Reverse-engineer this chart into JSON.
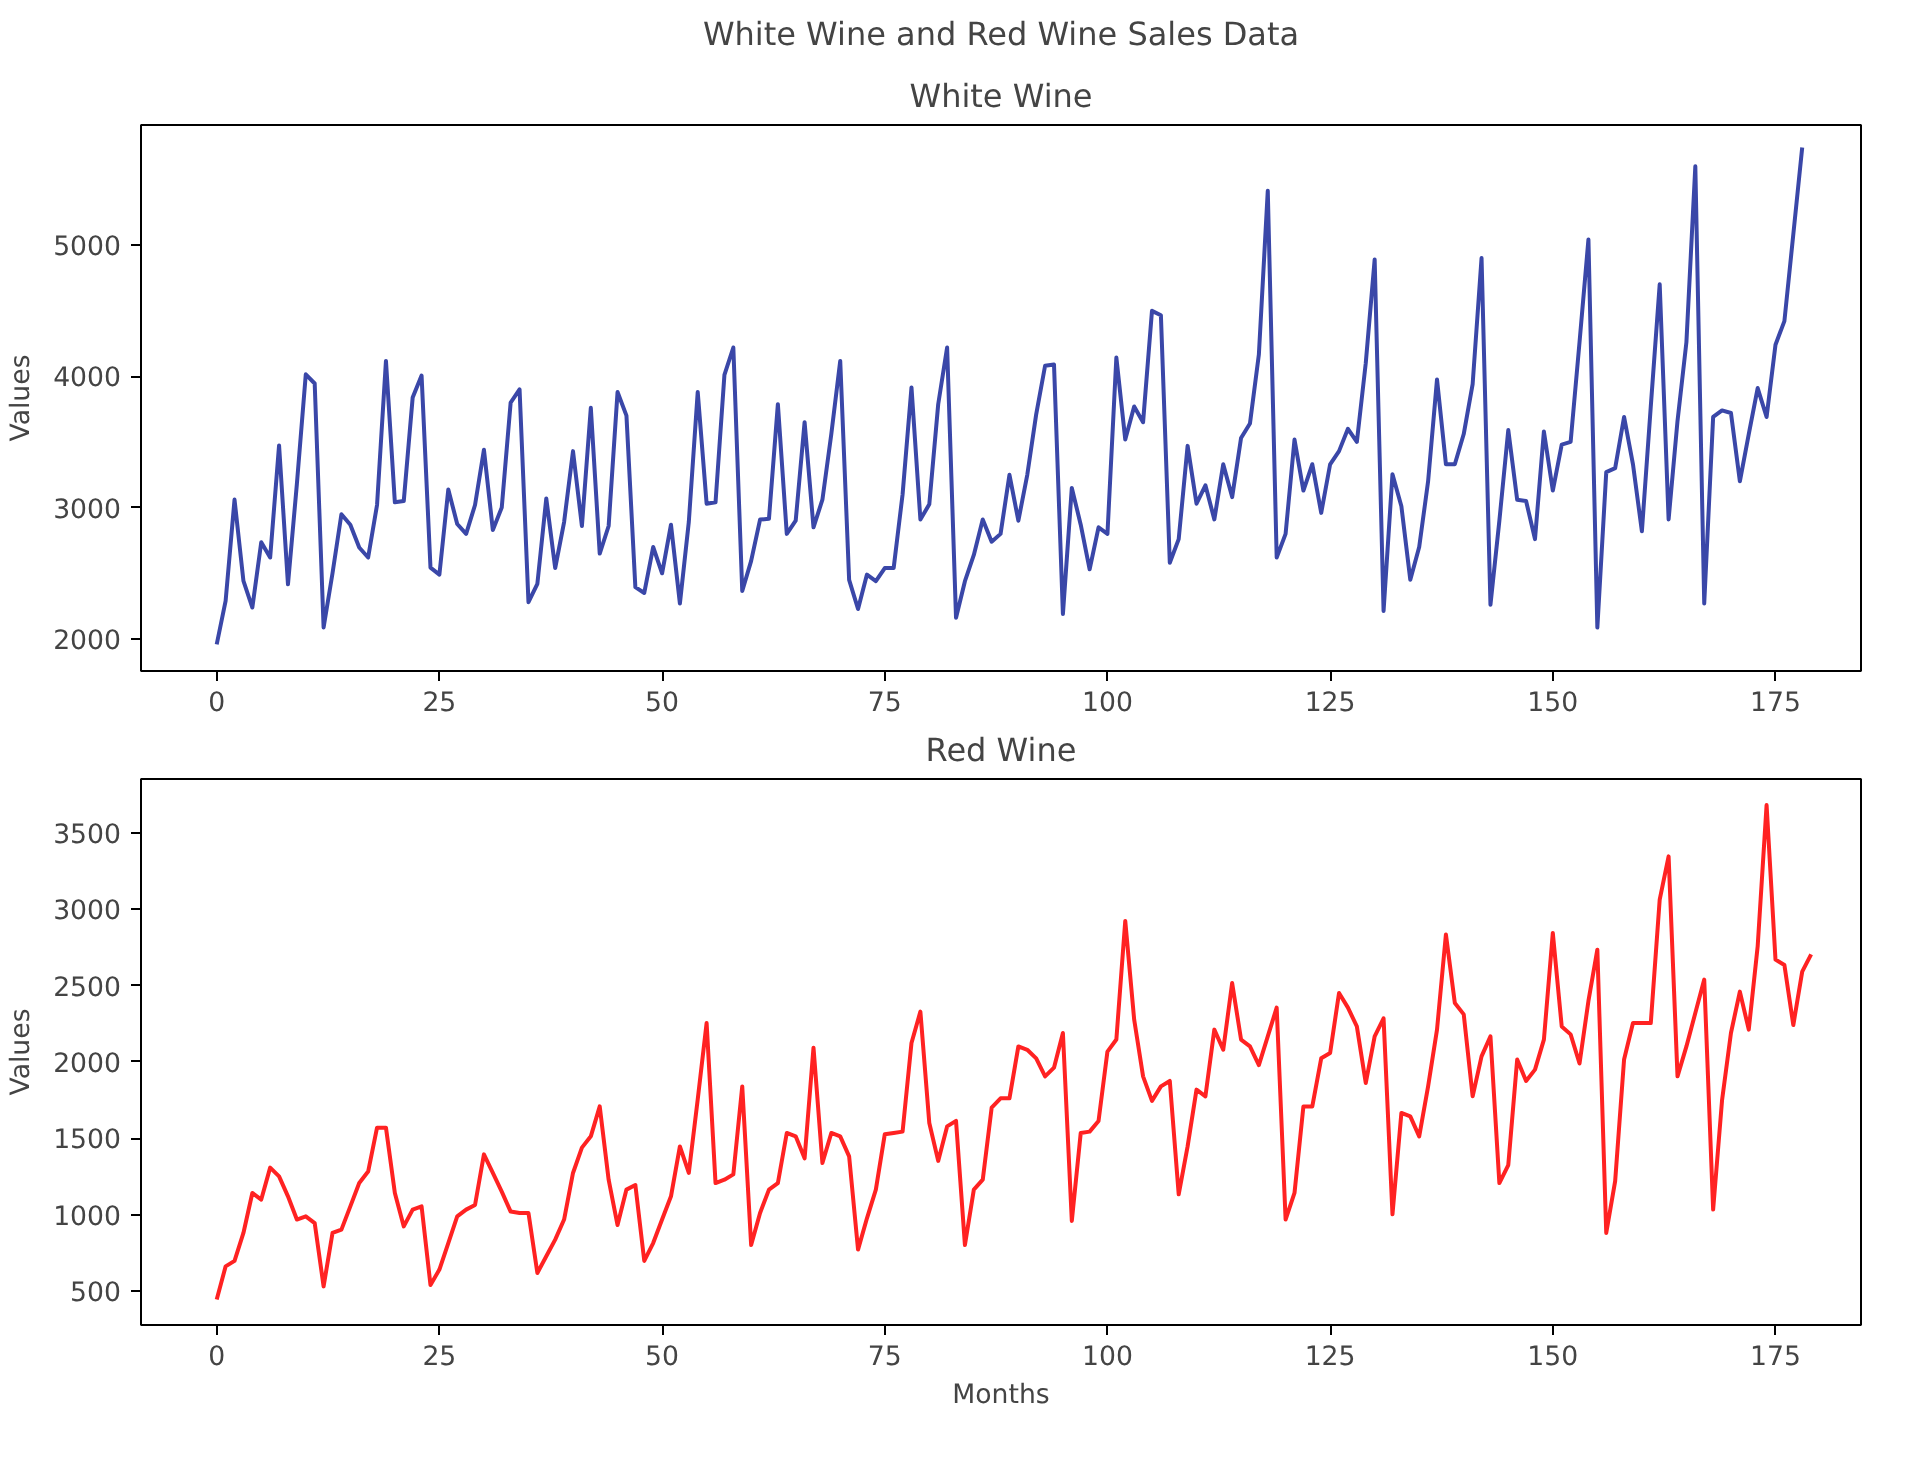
{
  "chart_data": [
    {
      "type": "line",
      "title": "White Wine and Red Wine Sales Data",
      "subtitle": "White Wine",
      "ylabel": "Values",
      "x": [
        0,
        1,
        2,
        3,
        4,
        5,
        6,
        7,
        8,
        9,
        10,
        11,
        12,
        13,
        14,
        15,
        16,
        17,
        18,
        19,
        20,
        21,
        22,
        23,
        24,
        25,
        26,
        27,
        28,
        29,
        30,
        31,
        32,
        33,
        34,
        35,
        36,
        37,
        38,
        39,
        40,
        41,
        42,
        43,
        44,
        45,
        46,
        47,
        48,
        49,
        50,
        51,
        52,
        53,
        54,
        55,
        56,
        57,
        58,
        59,
        60,
        61,
        62,
        63,
        64,
        65,
        66,
        67,
        68,
        69,
        70,
        71,
        72,
        73,
        74,
        75,
        76,
        77,
        78,
        79,
        80,
        81,
        82,
        83,
        84,
        85,
        86,
        87,
        88,
        89,
        90,
        91,
        92,
        93,
        94,
        95,
        96,
        97,
        98,
        99,
        100,
        101,
        102,
        103,
        104,
        105,
        106,
        107,
        108,
        109,
        110,
        111,
        112,
        113,
        114,
        115,
        116,
        117,
        118,
        119,
        120,
        121,
        122,
        123,
        124,
        125,
        126,
        127,
        128,
        129,
        130,
        131,
        132,
        133,
        134,
        135,
        136,
        137,
        138,
        139,
        140,
        141,
        142,
        143,
        144,
        145,
        146,
        147,
        148,
        149,
        150,
        151,
        152,
        153,
        154,
        155,
        156,
        157,
        158,
        159,
        160,
        161,
        162,
        163,
        164,
        165,
        166,
        167,
        168,
        169,
        170,
        171,
        172,
        173,
        174,
        175,
        176,
        177,
        178
      ],
      "series": [
        {
          "color": "#3a47a8",
          "values": [
            1959,
            2290,
            3061,
            2442,
            2239,
            2736,
            2620,
            3473,
            2416,
            3180,
            4015,
            3945,
            2087,
            2500,
            2949,
            2870,
            2696,
            2620,
            3020,
            4117,
            3040,
            3050,
            3838,
            4005,
            2543,
            2490,
            3138,
            2875,
            2800,
            3020,
            3440,
            2830,
            3000,
            3800,
            3900,
            2280,
            2420,
            3070,
            2540,
            2890,
            3430,
            2860,
            3760,
            2650,
            2860,
            3880,
            3700,
            2395,
            2350,
            2700,
            2500,
            2870,
            2270,
            2890,
            3880,
            3030,
            3040,
            4010,
            4219,
            2365,
            2594,
            2909,
            2915,
            3787,
            2800,
            2900,
            3650,
            2850,
            3060,
            3560,
            4117,
            2450,
            2228,
            2490,
            2440,
            2540,
            2540,
            3100,
            3915,
            2910,
            3025,
            3787,
            4219,
            2162,
            2440,
            2640,
            2910,
            2740,
            2800,
            3250,
            2900,
            3250,
            3710,
            4080,
            4090,
            2190,
            3150,
            2870,
            2530,
            2850,
            2800,
            4143,
            3518,
            3770,
            3650,
            4498,
            4465,
            2580,
            2760,
            3470,
            3030,
            3170,
            2910,
            3330,
            3080,
            3530,
            3640,
            4165,
            5412,
            2620,
            2800,
            3518,
            3130,
            3330,
            2960,
            3330,
            3430,
            3600,
            3500,
            4100,
            4889,
            2213,
            3254,
            3010,
            2450,
            2700,
            3200,
            3975,
            3330,
            3330,
            3560,
            3940,
            4900,
            2260,
            2900,
            3590,
            3060,
            3050,
            2760,
            3580,
            3130,
            3480,
            3500,
            4260,
            5041,
            2087,
            3270,
            3300,
            3690,
            3330,
            2820,
            3770,
            4700,
            2910,
            3660,
            4260,
            5599,
            2270,
            3690,
            3740,
            3720,
            3200,
            3560,
            3910,
            3690,
            4240,
            4420,
            5080,
            5742
          ]
        }
      ],
      "xlim": [
        -8.5,
        184.6
      ],
      "ylim": [
        1756,
        5913
      ],
      "xticks": [
        0,
        25,
        50,
        75,
        100,
        125,
        150,
        175
      ],
      "yticks": [
        2000,
        3000,
        4000,
        5000
      ],
      "grid": false
    },
    {
      "type": "line",
      "title": "Red Wine",
      "xlabel": "Months",
      "ylabel": "Values",
      "x": [
        0,
        1,
        2,
        3,
        4,
        5,
        6,
        7,
        8,
        9,
        10,
        11,
        12,
        13,
        14,
        15,
        16,
        17,
        18,
        19,
        20,
        21,
        22,
        23,
        24,
        25,
        26,
        27,
        28,
        29,
        30,
        31,
        32,
        33,
        34,
        35,
        36,
        37,
        38,
        39,
        40,
        41,
        42,
        43,
        44,
        45,
        46,
        47,
        48,
        49,
        50,
        51,
        52,
        53,
        54,
        55,
        56,
        57,
        58,
        59,
        60,
        61,
        62,
        63,
        64,
        65,
        66,
        67,
        68,
        69,
        70,
        71,
        72,
        73,
        74,
        75,
        76,
        77,
        78,
        79,
        80,
        81,
        82,
        83,
        84,
        85,
        86,
        87,
        88,
        89,
        90,
        91,
        92,
        93,
        94,
        95,
        96,
        97,
        98,
        99,
        100,
        101,
        102,
        103,
        104,
        105,
        106,
        107,
        108,
        109,
        110,
        111,
        112,
        113,
        114,
        115,
        116,
        117,
        118,
        119,
        120,
        121,
        122,
        123,
        124,
        125,
        126,
        127,
        128,
        129,
        130,
        131,
        132,
        133,
        134,
        135,
        136,
        137,
        138,
        139,
        140,
        141,
        142,
        143,
        144,
        145,
        146,
        147,
        148,
        149,
        150,
        151,
        152,
        153,
        154,
        155,
        156,
        157,
        158,
        159,
        160,
        161,
        162,
        163,
        164,
        165,
        166,
        167,
        168,
        169,
        170,
        171,
        172,
        173,
        174,
        175,
        176,
        177,
        178,
        179
      ],
      "series": [
        {
          "color": "#ff2222",
          "values": [
            444,
            661,
            697,
            880,
            1142,
            1099,
            1308,
            1251,
            1120,
            968,
            989,
            945,
            530,
            880,
            902,
            1054,
            1207,
            1282,
            1570,
            1570,
            1142,
            923,
            1033,
            1054,
            539,
            640,
            814,
            989,
            1033,
            1063,
            1395,
            1273,
            1151,
            1020,
            1011,
            1011,
            618,
            727,
            836,
            968,
            1273,
            1439,
            1513,
            1709,
            1229,
            932,
            1164,
            1194,
            697,
            814,
            968,
            1120,
            1447,
            1273,
            1754,
            2255,
            1207,
            1229,
            1264,
            1840,
            801,
            1011,
            1164,
            1207,
            1535,
            1513,
            1369,
            2094,
            1338,
            1535,
            1513,
            1382,
            771,
            976,
            1164,
            1526,
            1535,
            1544,
            2124,
            2330,
            1600,
            1352,
            1578,
            1614,
            801,
            1164,
            1229,
            1701,
            1762,
            1762,
            2102,
            2080,
            2024,
            1906,
            1963,
            2190,
            959,
            1535,
            1544,
            1614,
            2068,
            2147,
            2924,
            2278,
            1906,
            1745,
            1840,
            1876,
            1133,
            1447,
            1819,
            1775,
            2212,
            2080,
            2517,
            2147,
            2102,
            1980,
            2168,
            2356,
            968,
            1142,
            1709,
            1709,
            2024,
            2059,
            2452,
            2356,
            2233,
            1862,
            2168,
            2286,
            1002,
            1666,
            1644,
            1513,
            1840,
            2212,
            2836,
            2386,
            2312,
            1775,
            2037,
            2168,
            1207,
            1325,
            2016,
            1876,
            1950,
            2147,
            2845,
            2233,
            2181,
            1990,
            2400,
            2736,
            880,
            1220,
            2016,
            2255,
            2255,
            2255,
            3064,
            3347,
            1906,
            2102,
            2321,
            2540,
            1033,
            1749,
            2190,
            2461,
            2212,
            2758,
            3683,
            2671,
            2635,
            2242,
            2592,
            2705
          ]
        }
      ],
      "xlim": [
        -8.5,
        184.6
      ],
      "ylim": [
        277,
        3854
      ],
      "xticks": [
        0,
        25,
        50,
        75,
        100,
        125,
        150,
        175
      ],
      "yticks": [
        500,
        1000,
        1500,
        2000,
        2500,
        3000,
        3500
      ],
      "grid": false
    }
  ]
}
